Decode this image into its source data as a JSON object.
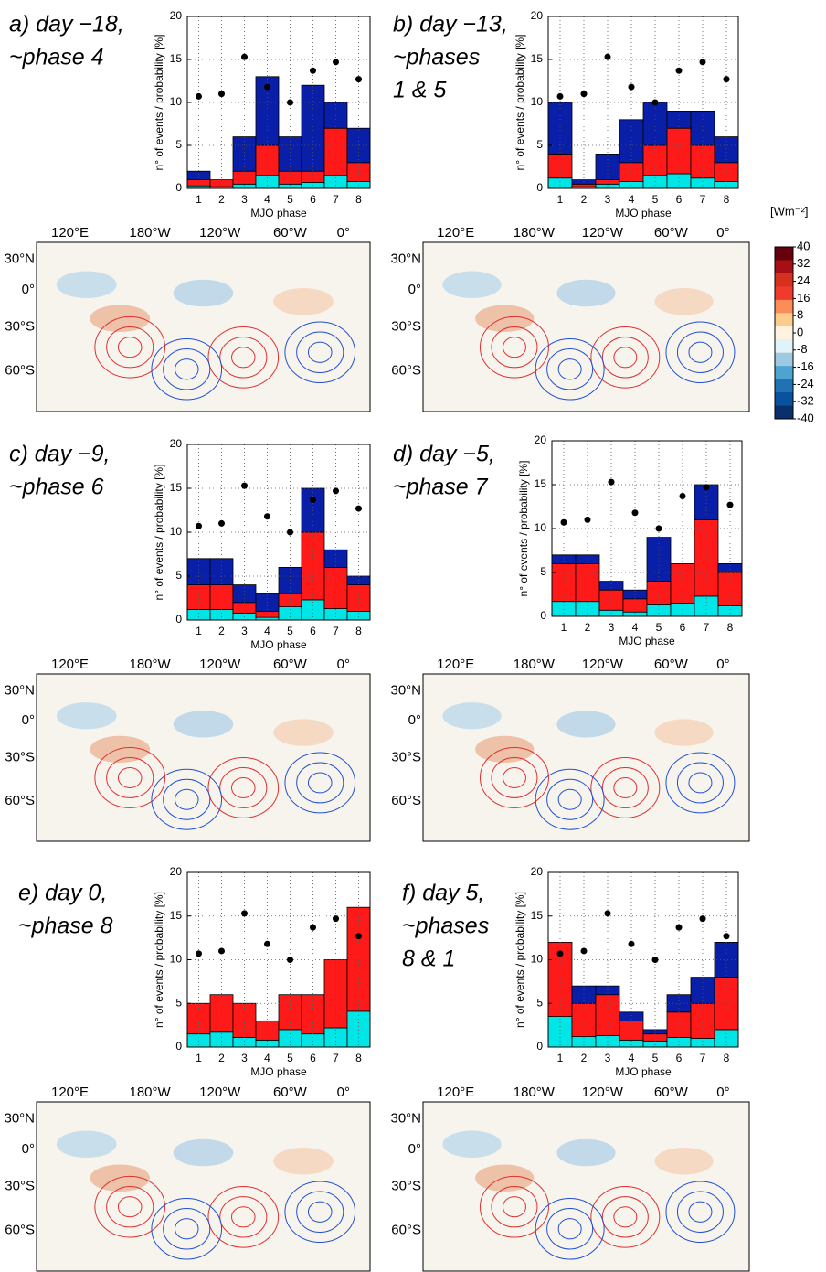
{
  "chart_data": [
    {
      "type": "bar",
      "stacked": true,
      "title": [
        "a) day −18,",
        "~phase 4"
      ],
      "xlabel": "MJO phase",
      "ylabel": "n° of events / probability [%]",
      "categories": [
        "1",
        "2",
        "3",
        "4",
        "5",
        "6",
        "7",
        "8"
      ],
      "ylim": [
        0,
        20
      ],
      "yticks": [
        0,
        5,
        10,
        15,
        20
      ],
      "grid": true,
      "series": [
        {
          "color": "#00e5e5",
          "values": [
            0.3,
            0.2,
            0.5,
            1.5,
            0.5,
            0.7,
            1.5,
            0.8
          ]
        },
        {
          "color": "#ff1a1a",
          "values": [
            0.7,
            0.8,
            1.5,
            3.5,
            1.5,
            1.3,
            5.5,
            2.2
          ]
        },
        {
          "color": "#0a1fa8",
          "values": [
            1,
            0,
            4,
            8,
            4,
            10,
            3,
            4
          ]
        }
      ],
      "dots": {
        "color": "#000000",
        "values": [
          10.7,
          11,
          15.3,
          11.8,
          10,
          13.7,
          14.7,
          12.7
        ]
      }
    },
    {
      "type": "bar",
      "stacked": true,
      "title": [
        "b) day −13,",
        "~phases",
        "1 & 5"
      ],
      "xlabel": "MJO phase",
      "ylabel": "n° of events / probability [%]",
      "categories": [
        "1",
        "2",
        "3",
        "4",
        "5",
        "6",
        "7",
        "8"
      ],
      "ylim": [
        0,
        20
      ],
      "yticks": [
        0,
        5,
        10,
        15,
        20
      ],
      "grid": true,
      "series": [
        {
          "color": "#00e5e5",
          "values": [
            1.2,
            0.2,
            0.5,
            0.8,
            1.5,
            1.7,
            1.2,
            0.8
          ]
        },
        {
          "color": "#ff1a1a",
          "values": [
            2.8,
            0.3,
            0.5,
            2.2,
            3.5,
            5.3,
            3.8,
            2.2
          ]
        },
        {
          "color": "#0a1fa8",
          "values": [
            6,
            0.5,
            3,
            5,
            5,
            2,
            4,
            3
          ]
        }
      ],
      "dots": {
        "color": "#000000",
        "values": [
          10.7,
          11,
          15.3,
          11.8,
          10,
          13.7,
          14.7,
          12.7
        ]
      }
    },
    {
      "type": "bar",
      "stacked": true,
      "title": [
        "c) day −9,",
        "~phase 6"
      ],
      "xlabel": "MJO phase",
      "ylabel": "n° of events / probability [%]",
      "categories": [
        "1",
        "2",
        "3",
        "4",
        "5",
        "6",
        "7",
        "8"
      ],
      "ylim": [
        0,
        20
      ],
      "yticks": [
        0,
        5,
        10,
        15,
        20
      ],
      "grid": true,
      "series": [
        {
          "color": "#00e5e5",
          "values": [
            1.2,
            1.2,
            0.8,
            0.3,
            1.5,
            2.3,
            1.3,
            1
          ]
        },
        {
          "color": "#ff1a1a",
          "values": [
            2.8,
            2.8,
            1.2,
            0.7,
            1.5,
            7.7,
            4.7,
            3
          ]
        },
        {
          "color": "#0a1fa8",
          "values": [
            3,
            3,
            2,
            2,
            3,
            5,
            2,
            1
          ]
        }
      ],
      "dots": {
        "color": "#000000",
        "values": [
          10.7,
          11,
          15.3,
          11.8,
          10,
          13.7,
          14.7,
          12.7
        ]
      }
    },
    {
      "type": "bar",
      "stacked": true,
      "title": [
        "d) day −5,",
        "~phase 7"
      ],
      "xlabel": "MJO phase",
      "ylabel": "n° of events / probability [%]",
      "categories": [
        "1",
        "2",
        "3",
        "4",
        "5",
        "6",
        "7",
        "8"
      ],
      "ylim": [
        0,
        20
      ],
      "yticks": [
        0,
        5,
        10,
        15,
        20
      ],
      "grid": true,
      "series": [
        {
          "color": "#00e5e5",
          "values": [
            1.7,
            1.7,
            0.7,
            0.5,
            1.3,
            1.5,
            2.3,
            1.2
          ]
        },
        {
          "color": "#ff1a1a",
          "values": [
            4.3,
            4.3,
            2.3,
            1.5,
            2.7,
            4.5,
            8.7,
            3.8
          ]
        },
        {
          "color": "#0a1fa8",
          "values": [
            1,
            1,
            1,
            1,
            5,
            0,
            4,
            1
          ]
        }
      ],
      "dots": {
        "color": "#000000",
        "values": [
          10.7,
          11,
          15.3,
          11.8,
          10,
          13.7,
          14.7,
          12.7
        ]
      }
    },
    {
      "type": "bar",
      "stacked": true,
      "title": [
        "e) day 0,",
        "~phase 8"
      ],
      "xlabel": "MJO phase",
      "ylabel": "n° of events / probability [%]",
      "categories": [
        "1",
        "2",
        "3",
        "4",
        "5",
        "6",
        "7",
        "8"
      ],
      "ylim": [
        0,
        20
      ],
      "yticks": [
        0,
        5,
        10,
        15,
        20
      ],
      "grid": true,
      "series": [
        {
          "color": "#00e5e5",
          "values": [
            1.5,
            1.7,
            1.1,
            0.8,
            2,
            1.5,
            2.2,
            4.1
          ]
        },
        {
          "color": "#ff1a1a",
          "values": [
            3.5,
            4.3,
            3.9,
            2.2,
            4,
            4.5,
            7.8,
            11.9
          ]
        },
        {
          "color": "#0a1fa8",
          "values": [
            0,
            0,
            0,
            0,
            0,
            0,
            0,
            0
          ]
        }
      ],
      "dots": {
        "color": "#000000",
        "values": [
          10.7,
          11,
          15.3,
          11.8,
          10,
          13.7,
          14.7,
          12.7
        ]
      }
    },
    {
      "type": "bar",
      "stacked": true,
      "title": [
        "f) day 5,",
        "~phases",
        "8 & 1"
      ],
      "xlabel": "MJO phase",
      "ylabel": "n° of events / probability [%]",
      "categories": [
        "1",
        "2",
        "3",
        "4",
        "5",
        "6",
        "7",
        "8"
      ],
      "ylim": [
        0,
        20
      ],
      "yticks": [
        0,
        5,
        10,
        15,
        20
      ],
      "grid": true,
      "series": [
        {
          "color": "#00e5e5",
          "values": [
            3.5,
            1.2,
            1.3,
            0.8,
            0.7,
            1.1,
            1,
            2
          ]
        },
        {
          "color": "#ff1a1a",
          "values": [
            8.5,
            3.8,
            4.7,
            2.2,
            0.8,
            2.9,
            4,
            6
          ]
        },
        {
          "color": "#0a1fa8",
          "values": [
            0,
            2,
            1,
            1,
            0.5,
            2,
            3,
            4
          ]
        }
      ],
      "dots": {
        "color": "#000000",
        "values": [
          10.7,
          11,
          15.3,
          11.8,
          10,
          13.7,
          14.7,
          12.7
        ]
      }
    }
  ],
  "map_labels": {
    "lon": [
      "120°E",
      "180°W",
      "120°W",
      "60°W",
      "0°"
    ],
    "lat": [
      "30°N",
      "0°",
      "30°S",
      "60°S"
    ]
  },
  "colorbar": {
    "label": "[Wm⁻²]",
    "ticks": [
      40,
      32,
      24,
      16,
      8,
      0,
      -8,
      -16,
      -24,
      -32,
      -40
    ],
    "colors": [
      "#67000d",
      "#a50f15",
      "#d7301f",
      "#ef3b2c",
      "#fc8d59",
      "#fdcc8a",
      "#fff3e0",
      "#e0f3f8",
      "#9ecae1",
      "#4fa3d1",
      "#2171b5",
      "#08519c",
      "#08306b"
    ]
  }
}
